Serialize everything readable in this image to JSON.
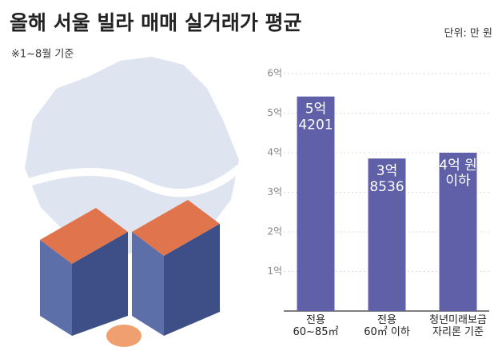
{
  "chart_data": {
    "type": "bar",
    "title": "올해 서울 빌라 매매 실거래가 평균",
    "subtitle": "※1~8월 기준",
    "unit_note": "단위: 만 원",
    "categories": [
      "전용\n60~85㎡",
      "전용\n60㎡ 이하",
      "청년미래보금\n자리론 기준"
    ],
    "values": [
      5.4201,
      3.8536,
      4
    ],
    "value_labels": [
      "5억\n4201",
      "3억\n8536",
      "4억 원\n이하"
    ],
    "color": "#5f60a8",
    "ylim": [
      0,
      6
    ],
    "yticks": [
      {
        "value": 1,
        "label": "1억"
      },
      {
        "value": 2,
        "label": "2억"
      },
      {
        "value": 3,
        "label": "3억"
      },
      {
        "value": 4,
        "label": "4억"
      },
      {
        "value": 5,
        "label": "5억"
      },
      {
        "value": 6,
        "label": "6억"
      }
    ],
    "grid": true
  }
}
